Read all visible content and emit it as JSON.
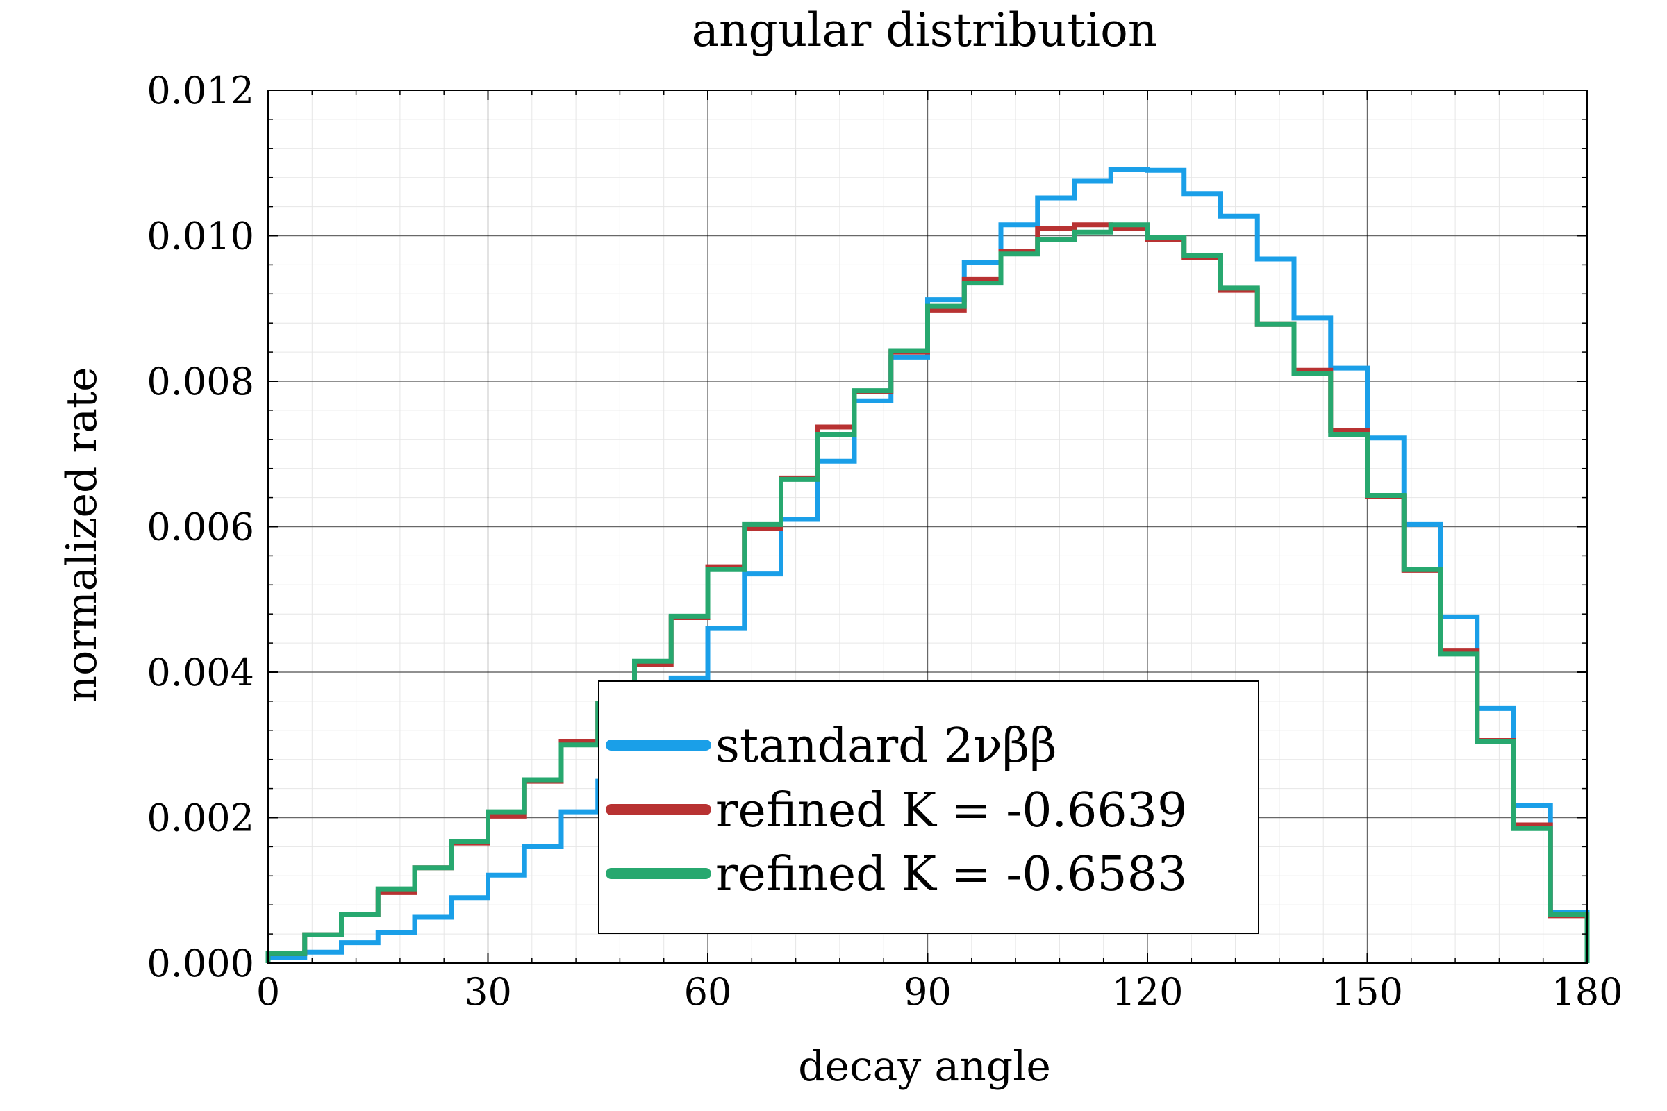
{
  "chart_data": {
    "type": "line",
    "title": "angular distribution",
    "xlabel": "decay angle",
    "ylabel": "normalized rate",
    "xlim": [
      0,
      180
    ],
    "ylim": [
      0,
      0.012
    ],
    "xticks": [
      "0",
      "30",
      "60",
      "90",
      "120",
      "150",
      "180"
    ],
    "xtick_values": [
      0,
      30,
      60,
      90,
      120,
      150,
      180
    ],
    "yticks": [
      "0.000",
      "0.002",
      "0.004",
      "0.006",
      "0.008",
      "0.010",
      "0.012"
    ],
    "ytick_values": [
      0,
      0.002,
      0.004,
      0.006,
      0.008,
      0.01,
      0.012
    ],
    "grid": true,
    "minor_grid": true,
    "legend_position": "bottom-center",
    "bin_edges": [
      0,
      5,
      10,
      15,
      20,
      25,
      30,
      35,
      40,
      45,
      50,
      55,
      60,
      65,
      70,
      75,
      80,
      85,
      90,
      95,
      100,
      105,
      110,
      115,
      120,
      125,
      130,
      135,
      140,
      145,
      150,
      155,
      160,
      165,
      170,
      175,
      180
    ],
    "series": [
      {
        "name": "standard 2νββ",
        "color": "#1a9fe8",
        "values": [
          8e-05,
          0.00015,
          0.00028,
          0.00042,
          0.00063,
          0.0009,
          0.00121,
          0.0016,
          0.00208,
          0.0025,
          0.0032,
          0.00392,
          0.0046,
          0.00535,
          0.0061,
          0.0069,
          0.00773,
          0.00833,
          0.00912,
          0.00963,
          0.01015,
          0.01052,
          0.01075,
          0.01091,
          0.0109,
          0.01058,
          0.01027,
          0.00968,
          0.00887,
          0.00818,
          0.00722,
          0.00603,
          0.00476,
          0.0035,
          0.00217,
          0.0007
        ]
      },
      {
        "name": "refined K = -0.6639",
        "color": "#b83232",
        "values": [
          0.00013,
          0.00039,
          0.00067,
          0.00097,
          0.00131,
          0.00165,
          0.00202,
          0.0025,
          0.00305,
          0.00357,
          0.0041,
          0.00475,
          0.00545,
          0.00598,
          0.00667,
          0.00737,
          0.00786,
          0.0084,
          0.00897,
          0.0094,
          0.00978,
          0.0101,
          0.01015,
          0.0101,
          0.00995,
          0.0097,
          0.00925,
          0.00878,
          0.00815,
          0.00732,
          0.00642,
          0.0054,
          0.0043,
          0.00306,
          0.0019,
          0.00065
        ]
      },
      {
        "name": "refined K = -0.6583",
        "color": "#27a86f",
        "values": [
          0.00013,
          0.00039,
          0.00067,
          0.00102,
          0.00131,
          0.00167,
          0.00208,
          0.00252,
          0.003,
          0.00357,
          0.00415,
          0.00477,
          0.00541,
          0.00603,
          0.00665,
          0.00727,
          0.00787,
          0.00842,
          0.00903,
          0.00935,
          0.00975,
          0.00995,
          0.01005,
          0.01015,
          0.00998,
          0.00973,
          0.00928,
          0.00878,
          0.0081,
          0.00727,
          0.00643,
          0.00541,
          0.00425,
          0.00305,
          0.00185,
          0.00067
        ]
      }
    ]
  }
}
